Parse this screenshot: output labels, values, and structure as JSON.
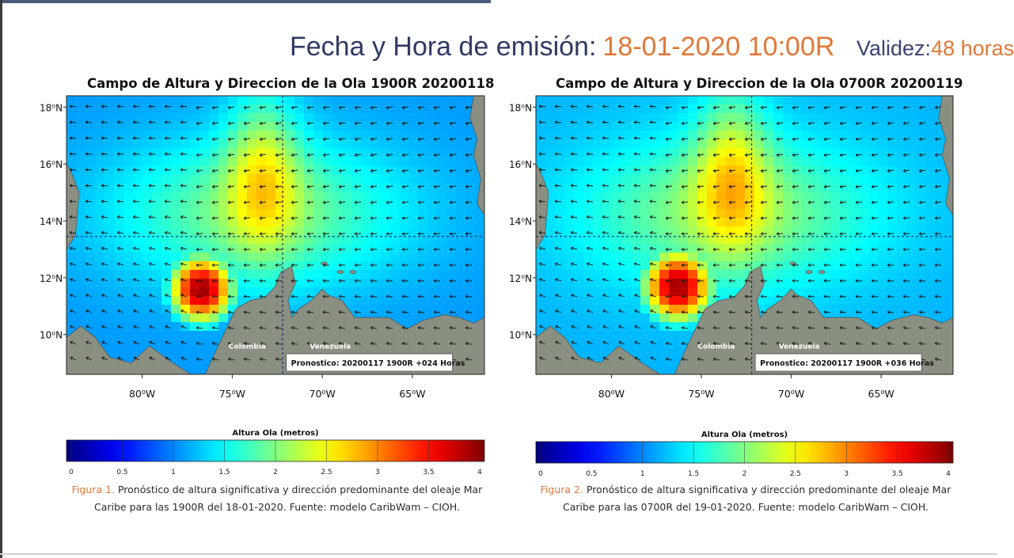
{
  "header": {
    "label": "Fecha y Hora de emisión:",
    "date": "18-01-2020  10:00R",
    "validity_label": "Validez:",
    "validity_value": "48 horas"
  },
  "colors": {
    "heading": "#2f3a63",
    "accent": "#e07838",
    "land": "#8a9081",
    "low_wave": "#1e3cc8",
    "high_wave": "#8b0000"
  },
  "chart_data": [
    {
      "type": "heatmap",
      "title": "Campo de Altura y Direccion de la Ola 1900R 20200118",
      "x_ticks": [
        "80⁰W",
        "75⁰W",
        "70⁰W",
        "65⁰W"
      ],
      "y_ticks": [
        "18⁰N",
        "16⁰N",
        "14⁰N",
        "12⁰N",
        "10⁰N"
      ],
      "lon_range": [
        -84.2,
        -61.0
      ],
      "lat_range": [
        8.6,
        18.4
      ],
      "crosshair": {
        "lon": -72.2,
        "lat": 13.45
      },
      "land_labels": [
        "Colombia",
        "Venezuela"
      ],
      "forecast_label": "Pronostico: 20200117 1900R +024 Horas",
      "colorbar": {
        "title": "Altura Ola (metros)",
        "min": 0,
        "max": 4,
        "ticks": [
          "0",
          "0.5",
          "1",
          "1.5",
          "2",
          "2.5",
          "3",
          "3.5",
          "4"
        ]
      },
      "field": {
        "max_height_m": 3.9,
        "max_center": [
          -76.7,
          11.6
        ],
        "max_spread_deg": [
          2.1,
          1.4
        ],
        "background_height_m": [
          1.1,
          2.0
        ]
      },
      "caption_figure": "Figura 1.",
      "caption_line1": " Pronóstico de altura significativa y dirección predominante del oleaje Mar",
      "caption_line2": "Caribe para las  1900R del 18-01-2020. Fuente: modelo CaribWam – CIOH."
    },
    {
      "type": "heatmap",
      "title": "Campo de Altura y Direccion de la Ola 0700R 20200119",
      "x_ticks": [
        "80⁰W",
        "75⁰W",
        "70⁰W",
        "65⁰W"
      ],
      "y_ticks": [
        "18⁰N",
        "16⁰N",
        "14⁰N",
        "12⁰N",
        "10⁰N"
      ],
      "lon_range": [
        -84.2,
        -61.0
      ],
      "lat_range": [
        8.6,
        18.4
      ],
      "crosshair": {
        "lon": -72.2,
        "lat": 13.45
      },
      "land_labels": [
        "Colombia",
        "Venezuela"
      ],
      "forecast_label": "Pronostico: 20200117 1900R +036 Horas",
      "colorbar": {
        "title": "Altura Ola (metros)",
        "min": 0,
        "max": 4,
        "ticks": [
          "0",
          "0.5",
          "1",
          "1.5",
          "2",
          "2.5",
          "3",
          "3.5",
          "4"
        ]
      },
      "field": {
        "max_height_m": 3.9,
        "max_center": [
          -76.3,
          11.7
        ],
        "max_spread_deg": [
          2.3,
          1.5
        ],
        "background_height_m": [
          1.2,
          2.1
        ]
      },
      "caption_figure": "Figura 2.",
      "caption_line1": " Pronóstico de altura significativa y dirección predominante del oleaje Mar",
      "caption_line2": "Caribe para las  0700R del 19-01-2020. Fuente: modelo CaribWam – CIOH."
    }
  ]
}
